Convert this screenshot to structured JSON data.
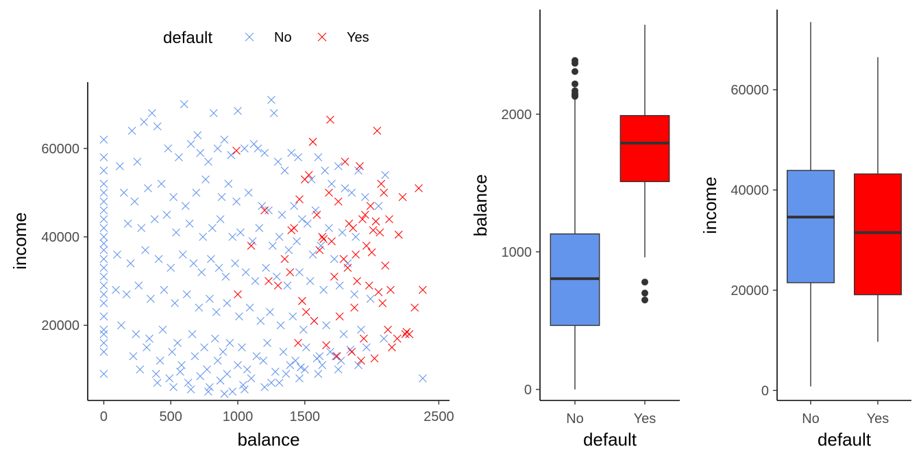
{
  "colors": {
    "No": "#6495ED",
    "Yes": "#FF0000",
    "box_line": "#333333"
  },
  "legend": {
    "title": "default",
    "items": [
      {
        "key": "No",
        "label": "No"
      },
      {
        "key": "Yes",
        "label": "Yes"
      }
    ],
    "position": "top",
    "marker": "cross"
  },
  "chart_data": [
    {
      "type": "scatter",
      "xlabel": "balance",
      "ylabel": "income",
      "xlim": [
        -120,
        2580
      ],
      "ylim": [
        3000,
        75000
      ],
      "x_ticks": [
        "0",
        "500",
        "1000",
        "1500",
        "2500"
      ],
      "x_tick_values": [
        0,
        500,
        1000,
        1500,
        2500
      ],
      "y_ticks": [
        "20000",
        "40000",
        "60000"
      ],
      "y_tick_values": [
        20000,
        40000,
        60000
      ],
      "grid": false,
      "series": [
        {
          "name": "No",
          "color": "#6495ED",
          "marker": "x",
          "x": [
            0,
            0,
            0,
            0,
            0,
            0,
            0,
            0,
            0,
            0,
            0,
            0,
            0,
            0,
            0,
            0,
            0,
            0,
            0,
            0,
            0,
            0,
            0,
            0,
            300,
            360,
            600,
            820,
            1000,
            1250,
            1270,
            210,
            400,
            700,
            900,
            1150,
            1400,
            1600,
            1750,
            1900,
            2100,
            120,
            250,
            480,
            560,
            650,
            720,
            780,
            850,
            950,
            1050,
            1120,
            1200,
            1300,
            1350,
            1450,
            1550,
            1650,
            1700,
            1800,
            1850,
            1950,
            2050,
            150,
            230,
            330,
            430,
            520,
            610,
            690,
            760,
            880,
            930,
            990,
            1080,
            1180,
            1230,
            1330,
            1420,
            1480,
            1520,
            1580,
            1680,
            1780,
            1880,
            180,
            280,
            380,
            470,
            540,
            640,
            740,
            810,
            870,
            960,
            1020,
            1110,
            1160,
            1260,
            1310,
            1380,
            1440,
            1560,
            1620,
            1720,
            1820,
            100,
            200,
            310,
            410,
            500,
            590,
            670,
            730,
            800,
            860,
            910,
            980,
            1060,
            1130,
            1210,
            1290,
            1370,
            1460,
            1540,
            1640,
            1760,
            1870,
            1990,
            90,
            170,
            260,
            350,
            450,
            530,
            620,
            710,
            790,
            840,
            920,
            1010,
            1090,
            1170,
            1240,
            1320,
            1410,
            1490,
            1570,
            1660,
            1790,
            1920,
            2090,
            130,
            240,
            340,
            440,
            550,
            660,
            750,
            830,
            890,
            940,
            1030,
            1140,
            1220,
            1340,
            1430,
            1510,
            1610,
            1690,
            220,
            320,
            420,
            510,
            580,
            680,
            770,
            850,
            920,
            1000,
            1070,
            1190,
            1280,
            1390,
            1470,
            1590,
            1730,
            1840,
            1960,
            270,
            390,
            490,
            570,
            630,
            720,
            790,
            870,
            960,
            1040,
            1100,
            1250,
            1360,
            1500,
            1630,
            1770,
            400,
            520,
            650,
            780,
            900,
            1050,
            1200,
            1310,
            1460,
            1600,
            1750,
            1900,
            2380
          ],
          "y": [
            62000,
            58000,
            55000,
            52000,
            50000,
            48000,
            46000,
            44000,
            42000,
            40000,
            38500,
            37000,
            35000,
            33000,
            31000,
            29000,
            27000,
            25000,
            22000,
            19000,
            18000,
            16000,
            14000,
            9000,
            66000,
            68000,
            70000,
            68000,
            68500,
            71000,
            68000,
            64000,
            65000,
            63000,
            62000,
            60000,
            59000,
            58000,
            56000,
            55000,
            54000,
            56000,
            57000,
            60000,
            58000,
            61000,
            59000,
            57000,
            60000,
            58500,
            60000,
            61000,
            59000,
            57000,
            55000,
            58000,
            53000,
            55000,
            52000,
            51000,
            50000,
            49000,
            47000,
            50000,
            48000,
            51000,
            52000,
            49000,
            47000,
            50000,
            53000,
            49000,
            52000,
            48000,
            50000,
            47000,
            46000,
            45000,
            47000,
            44000,
            43000,
            46000,
            42000,
            41000,
            40000,
            43000,
            42000,
            44000,
            45000,
            41000,
            43000,
            40000,
            42000,
            44000,
            40000,
            41000,
            39000,
            42000,
            38000,
            40000,
            37000,
            39000,
            36000,
            38000,
            35000,
            34000,
            36000,
            34000,
            37000,
            35000,
            33000,
            36000,
            34000,
            32000,
            35000,
            33000,
            31000,
            34000,
            32000,
            30000,
            33000,
            31000,
            29000,
            32000,
            30000,
            28000,
            29000,
            27000,
            26000,
            28000,
            27000,
            29000,
            26000,
            28000,
            25000,
            27000,
            24000,
            26000,
            23000,
            25000,
            22000,
            24000,
            21000,
            23000,
            20000,
            22000,
            19000,
            21000,
            20000,
            18000,
            19000,
            17000,
            20000,
            18000,
            17000,
            19000,
            16000,
            18000,
            15000,
            17000,
            14000,
            16000,
            15000,
            13000,
            16000,
            14000,
            12000,
            15000,
            13000,
            14000,
            13000,
            15000,
            12000,
            14000,
            11000,
            13000,
            10000,
            12000,
            9000,
            11000,
            10000,
            12000,
            9500,
            11000,
            10500,
            12500,
            13000,
            14500,
            15000,
            10000,
            9000,
            8000,
            9500,
            7000,
            8500,
            6000,
            7500,
            5000,
            6500,
            8000,
            7000,
            9000,
            10000,
            11000,
            12000,
            7000,
            6000,
            5500,
            5000,
            4500,
            5500,
            6000,
            7000,
            8000,
            9000,
            10000,
            11000,
            8000
          ]
        },
        {
          "name": "Yes",
          "color": "#FF0000",
          "marker": "x",
          "x": [
            990,
            1000,
            1100,
            1200,
            1230,
            1390,
            1450,
            1500,
            1560,
            1630,
            1690,
            1800,
            1830,
            1880,
            1910,
            1930,
            1990,
            2040,
            2070,
            2090,
            2130,
            2200,
            2250,
            2350,
            2380,
            1680,
            1700,
            1750,
            1790,
            1820,
            1860,
            1870,
            1890,
            1950,
            1980,
            2000,
            2030,
            2060,
            2100,
            2120,
            2140,
            2190,
            2230,
            2260,
            1400,
            1460,
            1530,
            1590,
            1640,
            1720,
            1760,
            1850,
            1920,
            1960,
            2010,
            2050,
            1300,
            1350,
            1420,
            1480,
            1510,
            1570,
            1610,
            1660,
            1740,
            1940,
            2020,
            2080,
            2150,
            2280,
            2320
          ],
          "y": [
            59500,
            27000,
            38000,
            46000,
            30000,
            32000,
            16000,
            53000,
            61500,
            40000,
            66500,
            57000,
            43000,
            36000,
            56000,
            44000,
            47000,
            64000,
            52000,
            50000,
            44000,
            40500,
            18000,
            51000,
            28000,
            50000,
            39000,
            48000,
            35000,
            33000,
            42000,
            24000,
            30000,
            45000,
            29000,
            36500,
            43500,
            41000,
            33500,
            19000,
            28000,
            17000,
            49000,
            18500,
            41500,
            48500,
            54000,
            45000,
            39500,
            31000,
            22000,
            14000,
            12000,
            38000,
            41500,
            27500,
            29000,
            35000,
            42000,
            25500,
            23000,
            21000,
            37000,
            15500,
            13000,
            17000,
            12500,
            25000,
            15000,
            18000,
            24000
          ]
        }
      ]
    },
    {
      "type": "box",
      "xlabel": "default",
      "ylabel": "balance",
      "ylim": [
        -80,
        2760
      ],
      "categories": [
        "No",
        "Yes"
      ],
      "y_ticks": [
        "0",
        "1000",
        "2000"
      ],
      "y_tick_values": [
        0,
        1000,
        2000
      ],
      "boxes": [
        {
          "category": "No",
          "min": 0,
          "q1": 465,
          "median": 805,
          "q3": 1130,
          "max": 2120,
          "outliers": [
            2130,
            2140,
            2150,
            2170,
            2220,
            2310,
            2370,
            2390
          ]
        },
        {
          "category": "Yes",
          "min": 960,
          "q1": 1510,
          "median": 1790,
          "q3": 1990,
          "max": 2650,
          "outliers": [
            650,
            700,
            780
          ]
        }
      ]
    },
    {
      "type": "box",
      "xlabel": "default",
      "ylabel": "income",
      "ylim": [
        -2000,
        76000
      ],
      "categories": [
        "No",
        "Yes"
      ],
      "y_ticks": [
        "0",
        "20000",
        "40000",
        "60000"
      ],
      "y_tick_values": [
        0,
        20000,
        40000,
        60000
      ],
      "boxes": [
        {
          "category": "No",
          "min": 800,
          "q1": 21500,
          "median": 34600,
          "q3": 43900,
          "max": 73500,
          "outliers": []
        },
        {
          "category": "Yes",
          "min": 9700,
          "q1": 19100,
          "median": 31500,
          "q3": 43200,
          "max": 66500,
          "outliers": []
        }
      ]
    }
  ]
}
